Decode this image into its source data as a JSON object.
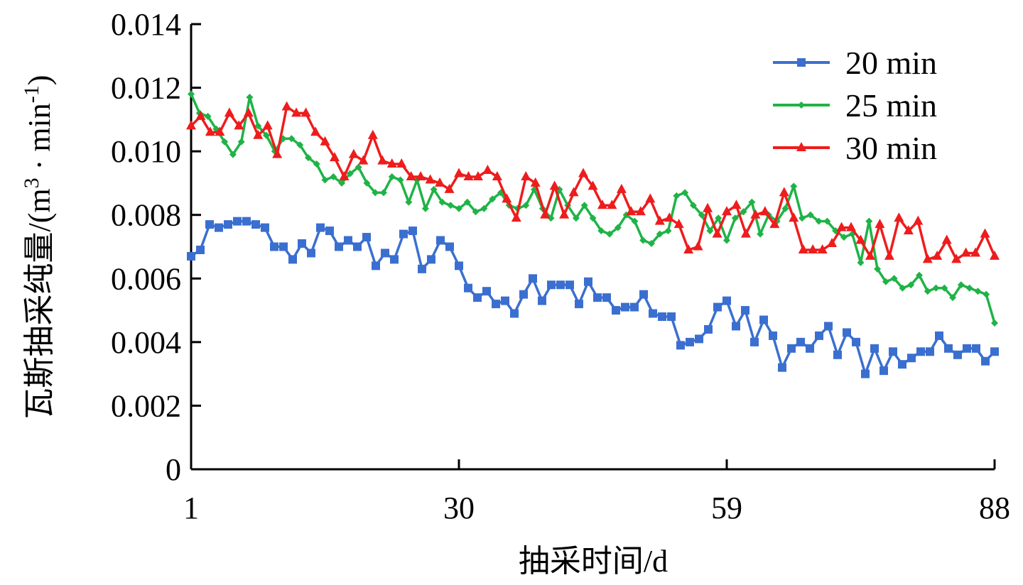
{
  "chart_data": {
    "type": "line",
    "xlabel": "抽采时间/d",
    "ylabel": "瓦斯抽采纯量/(m³·min⁻¹)",
    "ylabel_main": "瓦斯抽采纯量/(m",
    "ylabel_sup1": "3",
    "ylabel_mid": " · min",
    "ylabel_sup2": "-1",
    "ylabel_end": ")",
    "xlim": [
      1,
      88
    ],
    "ylim": [
      0,
      0.014
    ],
    "x_ticks": [
      1,
      30,
      59,
      88
    ],
    "y_ticks": [
      "0",
      "0.002",
      "0.004",
      "0.006",
      "0.008",
      "0.010",
      "0.012",
      "0.014"
    ],
    "legend_position": "top-right",
    "legend": [
      "20 min",
      "25 min",
      "30 min"
    ],
    "series": [
      {
        "name": "20 min",
        "color": "#3a6fd0",
        "marker": "square",
        "values": [
          0.0067,
          0.0069,
          0.0077,
          0.0076,
          0.0077,
          0.0078,
          0.0078,
          0.0077,
          0.0076,
          0.007,
          0.007,
          0.0066,
          0.0071,
          0.0068,
          0.0076,
          0.0075,
          0.007,
          0.0072,
          0.007,
          0.0073,
          0.0064,
          0.0068,
          0.0066,
          0.0074,
          0.0075,
          0.0063,
          0.0066,
          0.0072,
          0.007,
          0.0064,
          0.0057,
          0.0054,
          0.0056,
          0.0052,
          0.0053,
          0.0049,
          0.0055,
          0.006,
          0.0053,
          0.0058,
          0.0058,
          0.0058,
          0.0052,
          0.0059,
          0.0054,
          0.0054,
          0.005,
          0.0051,
          0.0051,
          0.0055,
          0.0049,
          0.0048,
          0.0048,
          0.0039,
          0.004,
          0.0041,
          0.0044,
          0.0051,
          0.0053,
          0.0045,
          0.005,
          0.004,
          0.0047,
          0.0042,
          0.0032,
          0.0038,
          0.004,
          0.0038,
          0.0042,
          0.0045,
          0.0036,
          0.0043,
          0.004,
          0.003,
          0.0038,
          0.0031,
          0.0037,
          0.0033,
          0.0035,
          0.0037,
          0.0037,
          0.0042,
          0.0038,
          0.0036,
          0.0038,
          0.0038,
          0.0034,
          0.0037
        ]
      },
      {
        "name": "25 min",
        "color": "#1fb347",
        "marker": "diamond",
        "values": [
          0.0118,
          0.0112,
          0.0111,
          0.0107,
          0.0103,
          0.0099,
          0.0103,
          0.0117,
          0.0108,
          0.0105,
          0.01,
          0.0104,
          0.0104,
          0.0102,
          0.0098,
          0.0096,
          0.0091,
          0.0092,
          0.009,
          0.0093,
          0.0095,
          0.009,
          0.0087,
          0.0087,
          0.0092,
          0.0091,
          0.0084,
          0.0091,
          0.0082,
          0.0088,
          0.0084,
          0.0083,
          0.0082,
          0.0084,
          0.0081,
          0.0082,
          0.0085,
          0.0087,
          0.0083,
          0.0082,
          0.0083,
          0.0088,
          0.0082,
          0.0079,
          0.0088,
          0.0083,
          0.0079,
          0.0083,
          0.0079,
          0.0075,
          0.0074,
          0.0076,
          0.008,
          0.0078,
          0.0072,
          0.0071,
          0.0074,
          0.0075,
          0.0086,
          0.0087,
          0.0083,
          0.008,
          0.0075,
          0.0079,
          0.0072,
          0.0079,
          0.0081,
          0.0084,
          0.0074,
          0.008,
          0.0078,
          0.0082,
          0.0089,
          0.0079,
          0.008,
          0.0078,
          0.0078,
          0.0075,
          0.0073,
          0.0074,
          0.0065,
          0.0078,
          0.0063,
          0.0059,
          0.006,
          0.0057,
          0.0058,
          0.0061,
          0.0056,
          0.0057,
          0.0057,
          0.0054,
          0.0058,
          0.0057,
          0.0056,
          0.0055,
          0.0046
        ]
      },
      {
        "name": "30 min",
        "color": "#ee1c1c",
        "marker": "triangle",
        "values": [
          0.0108,
          0.0111,
          0.0106,
          0.0106,
          0.0112,
          0.0108,
          0.0112,
          0.0105,
          0.0108,
          0.0099,
          0.0114,
          0.0112,
          0.0112,
          0.0106,
          0.0103,
          0.0098,
          0.0092,
          0.0099,
          0.0097,
          0.0105,
          0.0097,
          0.0096,
          0.0096,
          0.0092,
          0.0092,
          0.0091,
          0.009,
          0.0088,
          0.0093,
          0.0092,
          0.0092,
          0.0094,
          0.0092,
          0.0085,
          0.0079,
          0.0092,
          0.009,
          0.008,
          0.0089,
          0.008,
          0.0087,
          0.0093,
          0.0089,
          0.0083,
          0.0083,
          0.0088,
          0.0081,
          0.0081,
          0.0085,
          0.0078,
          0.0079,
          0.0077,
          0.0069,
          0.007,
          0.0082,
          0.0074,
          0.0081,
          0.0083,
          0.0074,
          0.008,
          0.0081,
          0.0077,
          0.0087,
          0.0079,
          0.0069,
          0.0069,
          0.0069,
          0.0071,
          0.0076,
          0.0076,
          0.0072,
          0.0067,
          0.0077,
          0.0067,
          0.0079,
          0.0075,
          0.0078,
          0.0066,
          0.0067,
          0.0072,
          0.0066,
          0.0068,
          0.0068,
          0.0074,
          0.0067
        ]
      }
    ]
  }
}
